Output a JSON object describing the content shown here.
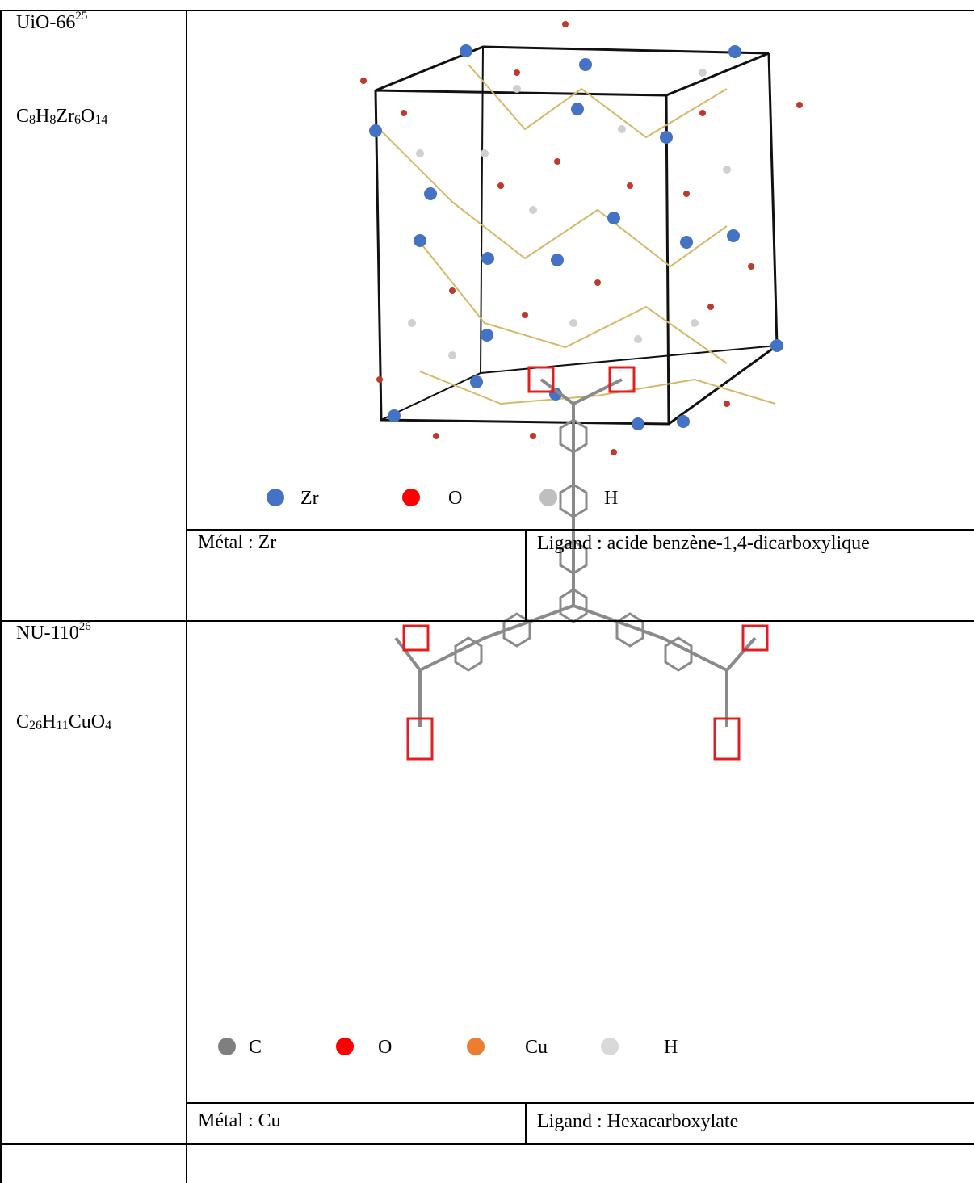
{
  "table": {
    "rows": [
      {
        "name": "UiO-66",
        "ref": "25",
        "formula": [
          {
            "el": "C",
            "sub": "8"
          },
          {
            "el": "H",
            "sub": "8"
          },
          {
            "el": "Zr",
            "sub": "6"
          },
          {
            "el": "O",
            "sub": "14"
          }
        ],
        "legend": [
          {
            "symbol": "Zr",
            "color": "#4472c4"
          },
          {
            "symbol": "O",
            "color": "#ff0000"
          },
          {
            "symbol": "H",
            "color": "#bfbfbf"
          }
        ],
        "metal": "Métal : Zr",
        "ligand": "Ligand : acide benzène-1,4-dicarboxylique"
      },
      {
        "name": "NU-110",
        "ref": "26",
        "formula": [
          {
            "el": "C",
            "sub": "26"
          },
          {
            "el": "H",
            "sub": "11"
          },
          {
            "el": "Cu"
          },
          {
            "el": "O",
            "sub": "4"
          }
        ],
        "legend": [
          {
            "symbol": "C",
            "color": "#7f7f7f"
          },
          {
            "symbol": "O",
            "color": "#ff0000"
          },
          {
            "symbol": "Cu",
            "color": "#ed7d31"
          },
          {
            "symbol": "H",
            "color": "#d9d9d9"
          }
        ],
        "metal": "Métal : Cu",
        "ligand": "Ligand : Hexacarboxylate"
      }
    ]
  }
}
